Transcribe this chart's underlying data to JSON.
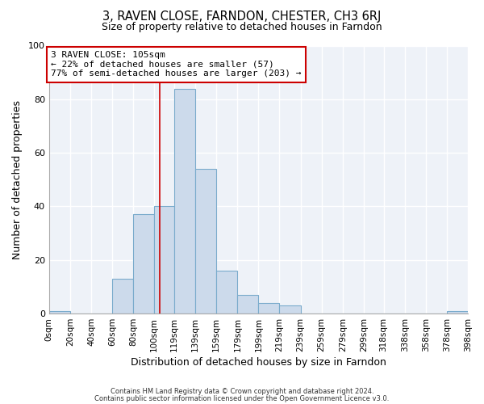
{
  "title": "3, RAVEN CLOSE, FARNDON, CHESTER, CH3 6RJ",
  "subtitle": "Size of property relative to detached houses in Farndon",
  "xlabel": "Distribution of detached houses by size in Farndon",
  "ylabel": "Number of detached properties",
  "bar_edges": [
    0,
    20,
    40,
    60,
    80,
    100,
    119,
    139,
    159,
    179,
    199,
    219,
    239,
    259,
    279,
    299,
    318,
    338,
    358,
    378,
    398
  ],
  "bar_heights": [
    1,
    0,
    0,
    13,
    37,
    40,
    84,
    54,
    16,
    7,
    4,
    3,
    0,
    0,
    0,
    0,
    0,
    0,
    0,
    1
  ],
  "bar_color": "#ccdaeb",
  "bar_edge_color": "#7aabcc",
  "property_line_x": 105,
  "property_line_color": "#cc0000",
  "ylim": [
    0,
    100
  ],
  "annotation_text": "3 RAVEN CLOSE: 105sqm\n← 22% of detached houses are smaller (57)\n77% of semi-detached houses are larger (203) →",
  "annotation_box_color": "#ffffff",
  "annotation_box_edge": "#cc0000",
  "footer_line1": "Contains HM Land Registry data © Crown copyright and database right 2024.",
  "footer_line2": "Contains public sector information licensed under the Open Government Licence v3.0.",
  "bg_color": "#ffffff",
  "plot_bg_color": "#eef2f8",
  "grid_color": "#ffffff",
  "tick_labels": [
    "0sqm",
    "20sqm",
    "40sqm",
    "60sqm",
    "80sqm",
    "100sqm",
    "119sqm",
    "139sqm",
    "159sqm",
    "179sqm",
    "199sqm",
    "219sqm",
    "239sqm",
    "259sqm",
    "279sqm",
    "299sqm",
    "318sqm",
    "338sqm",
    "358sqm",
    "378sqm",
    "398sqm"
  ]
}
